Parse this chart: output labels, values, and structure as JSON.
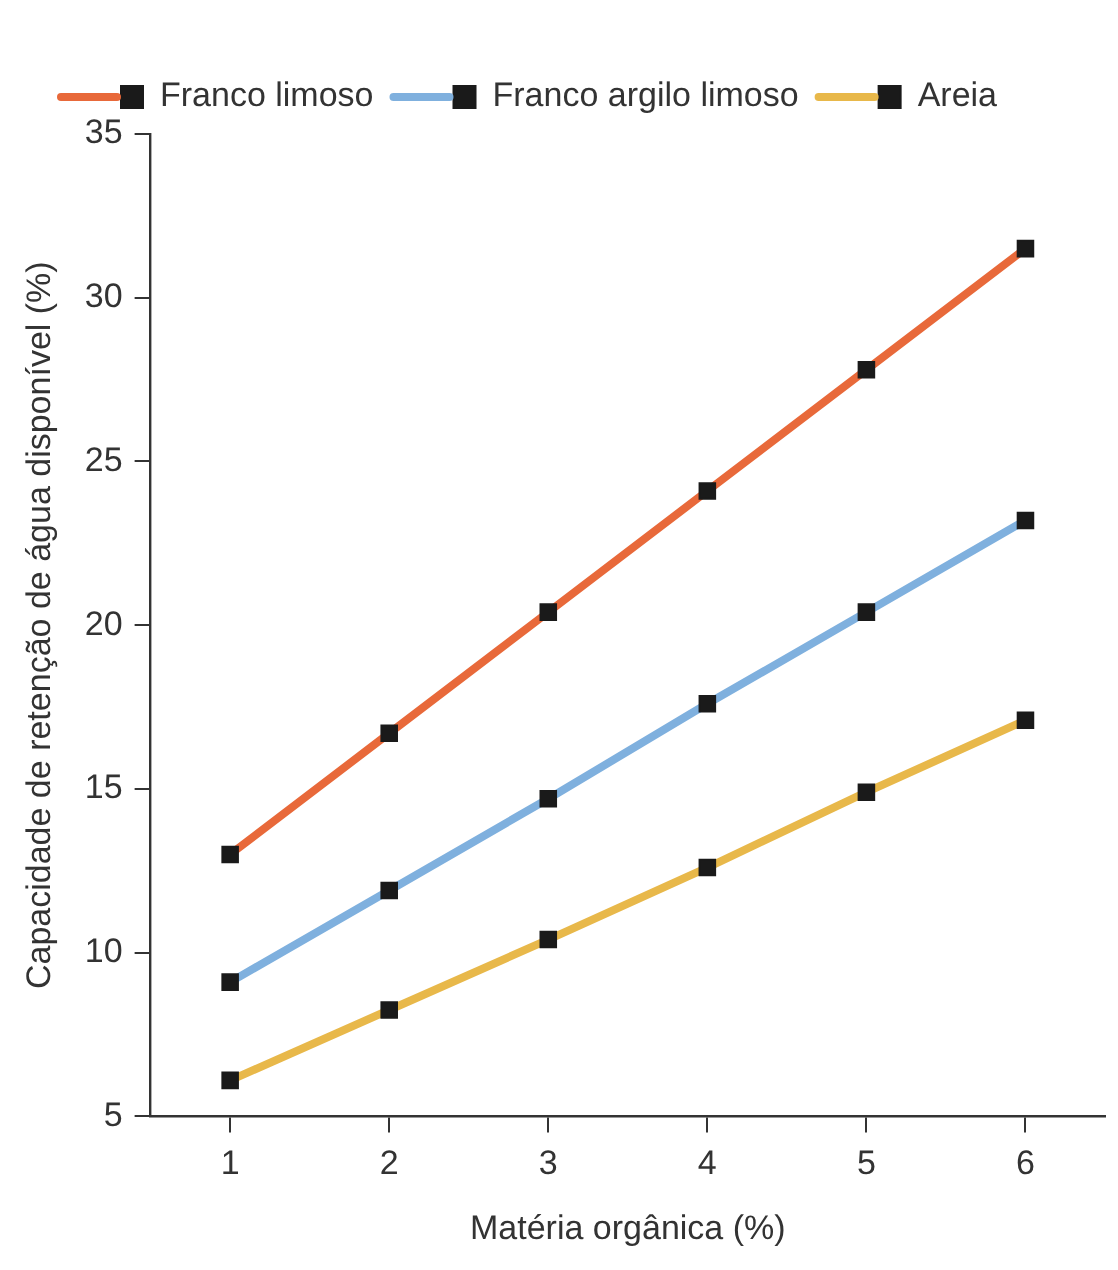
{
  "chart_data": {
    "type": "line",
    "xlabel": "Matéria orgânica (%)",
    "ylabel": "Capacidade de retenção de água disponível (%)",
    "x": [
      1,
      2,
      3,
      4,
      5,
      6
    ],
    "series": [
      {
        "name": "Franco limoso",
        "color": "#e8693a",
        "values": [
          13,
          16.7,
          20.4,
          24.1,
          27.8,
          31.5
        ]
      },
      {
        "name": "Franco argilo limoso",
        "color": "#7fb0de",
        "values": [
          9.1,
          11.9,
          14.7,
          17.6,
          20.4,
          23.2
        ]
      },
      {
        "name": "Areia",
        "color": "#e8b84a",
        "values": [
          6.1,
          8.25,
          10.4,
          12.6,
          14.9,
          17.1
        ]
      }
    ],
    "xlim": [
      0.5,
      6.5
    ],
    "xticks": [
      1,
      2,
      3,
      4,
      5,
      6
    ],
    "ylim": [
      5,
      35
    ],
    "yticks": [
      5,
      10,
      15,
      20,
      25,
      30,
      35
    ],
    "grid": false,
    "legend": "top",
    "marker": "square",
    "line_style": "solid"
  }
}
